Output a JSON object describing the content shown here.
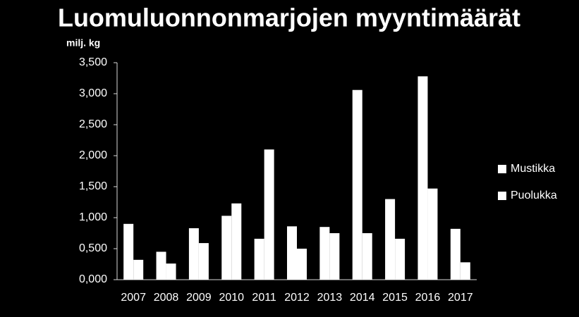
{
  "chart_data": {
    "type": "bar",
    "title": "Luomuluonnonmarjojen myyntimäärät",
    "y_label": "milj. kg",
    "categories": [
      "2007",
      "2008",
      "2009",
      "2010",
      "2011",
      "2012",
      "2013",
      "2014",
      "2015",
      "2016",
      "2017"
    ],
    "series": [
      {
        "name": "Mustikka",
        "color": "#ffffff",
        "values": [
          0.9,
          0.45,
          0.83,
          1.03,
          0.66,
          0.86,
          0.85,
          3.06,
          1.3,
          3.28,
          0.82
        ]
      },
      {
        "name": "Puolukka",
        "color": "#ffffff",
        "values": [
          0.32,
          0.26,
          0.59,
          1.23,
          2.1,
          0.5,
          0.75,
          0.75,
          0.66,
          1.47,
          0.28
        ]
      }
    ],
    "ylim": [
      0,
      3.5
    ],
    "yticks": [
      {
        "value": 0,
        "label": "0,000"
      },
      {
        "value": 0.5,
        "label": "0,500"
      },
      {
        "value": 1,
        "label": "1,000"
      },
      {
        "value": 1.5,
        "label": "1,500"
      },
      {
        "value": 2,
        "label": "2,000"
      },
      {
        "value": 2.5,
        "label": "2,500"
      },
      {
        "value": 3,
        "label": "3,000"
      },
      {
        "value": 3.5,
        "label": "3,500"
      }
    ],
    "grid": false,
    "legend": "right"
  }
}
